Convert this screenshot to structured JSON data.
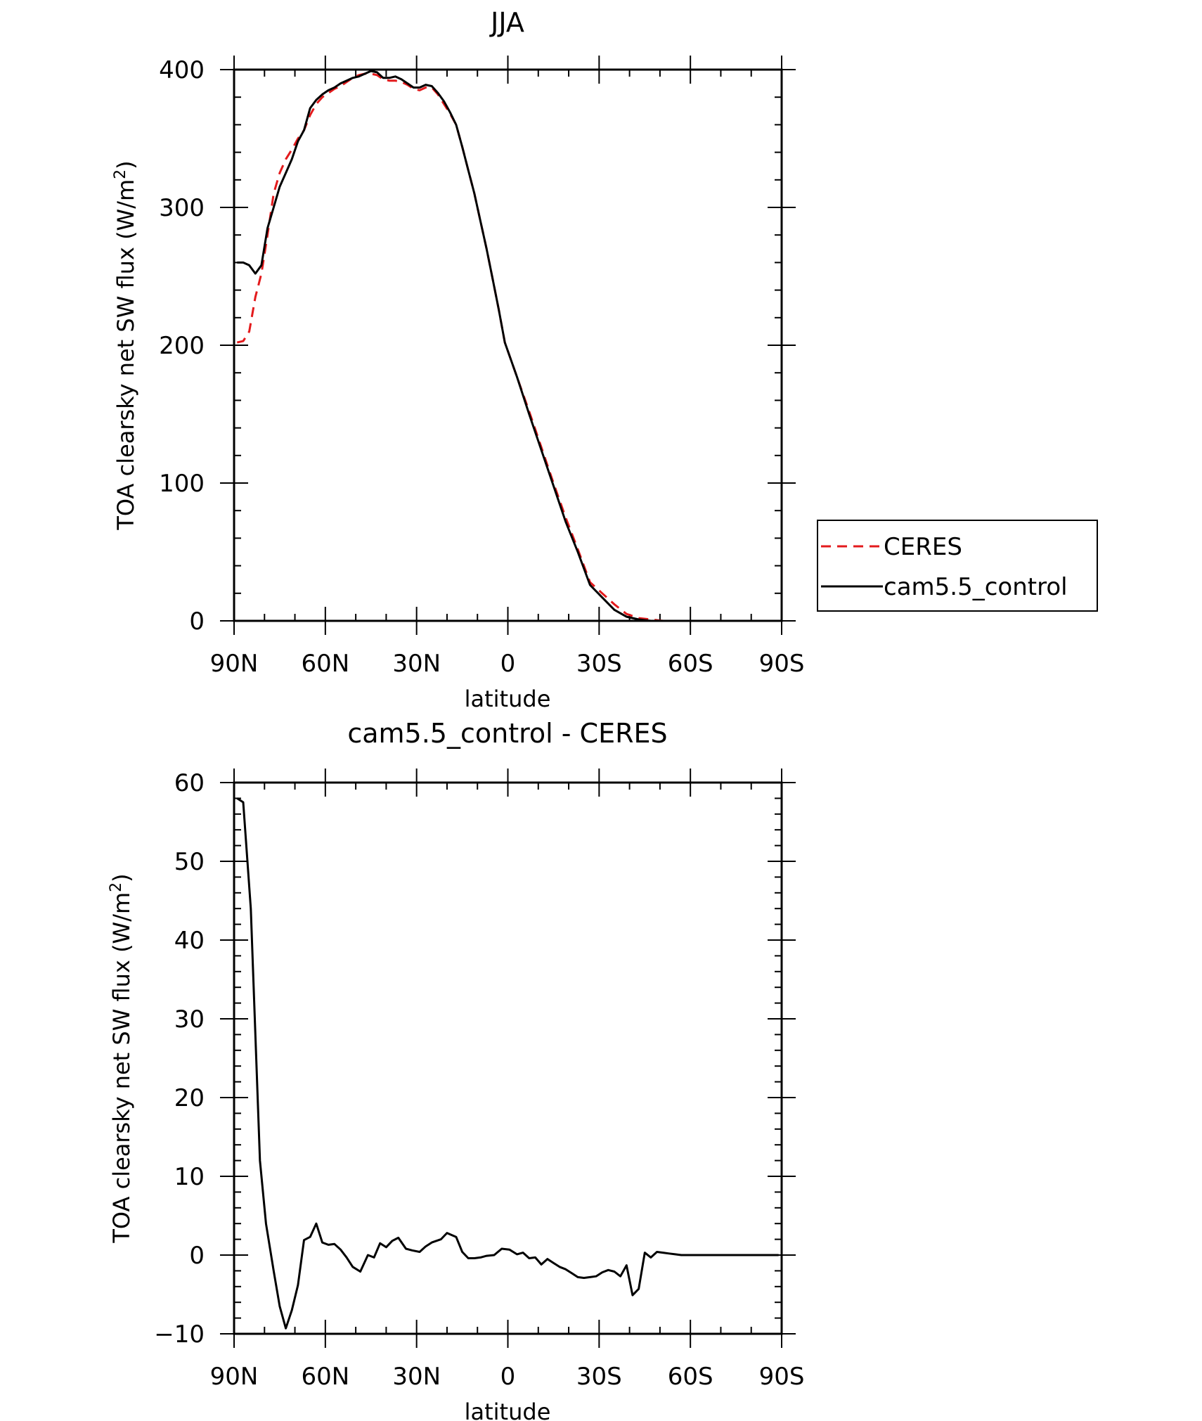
{
  "chart_data": [
    {
      "type": "line",
      "title": "JJA",
      "xlabel": "latitude",
      "ylabel_main": "TOA clearsky net SW flux (W/m",
      "ylabel_sup": "2",
      "ylabel_close": ")",
      "xlim": [
        90,
        -90
      ],
      "ylim": [
        0,
        400
      ],
      "xticks": [
        {
          "value": 90,
          "label": "90N"
        },
        {
          "value": 60,
          "label": "60N"
        },
        {
          "value": 30,
          "label": "30N"
        },
        {
          "value": 0,
          "label": "0"
        },
        {
          "value": -30,
          "label": "30S"
        },
        {
          "value": -60,
          "label": "60S"
        },
        {
          "value": -90,
          "label": "90S"
        }
      ],
      "yticks": [
        0,
        100,
        200,
        300,
        400
      ],
      "legend_position": "right",
      "series": [
        {
          "name": "CERES",
          "color": "#e31a1c",
          "dash": true,
          "x": [
            89,
            87,
            85,
            83,
            81,
            79,
            77,
            75,
            73,
            71,
            69,
            67,
            65,
            63,
            61,
            59,
            57,
            55,
            53,
            51,
            49,
            47,
            45,
            43,
            41,
            39,
            37,
            35,
            33,
            31,
            29,
            27,
            25,
            23,
            21,
            19,
            17,
            15,
            13,
            11,
            9,
            7,
            5,
            3,
            1,
            -3,
            -7,
            -11,
            -15,
            -19,
            -23,
            -27,
            -31,
            -35,
            -39,
            -43,
            -47,
            -51,
            -55,
            -59,
            -61,
            -63,
            -65,
            -67,
            -69,
            -71,
            -73,
            -75,
            -77,
            -79,
            -81,
            -85,
            -89
          ],
          "y": [
            202,
            203,
            210,
            235,
            252,
            280,
            310,
            325,
            335,
            342,
            350,
            356,
            367,
            375,
            380,
            383,
            386,
            388,
            391,
            394,
            396,
            397,
            397,
            396,
            393,
            392,
            392,
            391,
            389,
            386,
            385,
            387,
            387,
            382,
            375,
            368,
            360,
            344,
            327,
            310,
            290,
            270,
            248,
            226,
            202,
            177,
            152,
            126,
            100,
            75,
            52,
            28,
            20,
            12,
            5,
            2,
            1,
            0,
            0,
            0,
            0,
            0,
            0,
            0,
            0,
            0,
            0,
            0,
            0,
            0,
            0,
            0,
            0
          ]
        },
        {
          "name": "cam5.5_control",
          "color": "#000000",
          "dash": false,
          "x": [
            89,
            87,
            85,
            83,
            81,
            79,
            77,
            75,
            73,
            71,
            69,
            67,
            65,
            63,
            61,
            59,
            57,
            55,
            53,
            51,
            49,
            47,
            45,
            43,
            41,
            39,
            37,
            35,
            33,
            31,
            29,
            27,
            25,
            23,
            21,
            19,
            17,
            15,
            13,
            11,
            9,
            7,
            5,
            3,
            1,
            -3,
            -7,
            -11,
            -15,
            -19,
            -23,
            -27,
            -31,
            -35,
            -39,
            -43,
            -47,
            -51,
            -55,
            -59,
            -61,
            -63,
            -65,
            -67,
            -69,
            -71,
            -73,
            -75,
            -77,
            -79,
            -81,
            -85,
            -89
          ],
          "y": [
            260,
            260,
            258,
            252,
            258,
            285,
            300,
            315,
            325,
            335,
            348,
            356,
            372,
            378,
            382,
            385,
            387,
            390,
            392,
            394,
            395,
            397,
            399,
            398,
            394,
            394,
            395,
            393,
            390,
            387,
            387,
            389,
            388,
            383,
            377,
            369,
            360,
            344,
            327,
            310,
            290,
            270,
            248,
            226,
            202,
            177,
            150,
            124,
            98,
            72,
            50,
            26,
            17,
            8,
            3,
            1,
            0,
            0,
            0,
            0,
            0,
            0,
            0,
            0,
            0,
            0,
            0,
            0,
            0,
            0,
            0,
            0,
            0
          ]
        }
      ]
    },
    {
      "type": "line",
      "title": "cam5.5_control - CERES",
      "xlabel": "latitude",
      "ylabel_main": "TOA clearsky net SW flux (W/m",
      "ylabel_sup": "2",
      "ylabel_close": ")",
      "xlim": [
        90,
        -90
      ],
      "ylim": [
        -10,
        60
      ],
      "xticks": [
        {
          "value": 90,
          "label": "90N"
        },
        {
          "value": 60,
          "label": "60N"
        },
        {
          "value": 30,
          "label": "30N"
        },
        {
          "value": 0,
          "label": "0"
        },
        {
          "value": -30,
          "label": "30S"
        },
        {
          "value": -60,
          "label": "60S"
        },
        {
          "value": -90,
          "label": "90S"
        }
      ],
      "yticks": [
        -10,
        0,
        10,
        20,
        30,
        40,
        50,
        60
      ],
      "series": [
        {
          "color": "#000000",
          "dash": false,
          "x": [
            89,
            87,
            84.5,
            81.5,
            79.5,
            77,
            75,
            73,
            71,
            69,
            67,
            65,
            63,
            61,
            59,
            57,
            55,
            53,
            51,
            48.5,
            46,
            44,
            42,
            40,
            38,
            36,
            33.5,
            31.5,
            29,
            27,
            25,
            22,
            20,
            17,
            15,
            13,
            11,
            9,
            7,
            4.5,
            2,
            -0.5,
            -3,
            -5,
            -7,
            -9,
            -11,
            -13,
            -15,
            -17,
            -19,
            -21,
            -23,
            -25,
            -27,
            -29,
            -31,
            -33,
            -35,
            -37,
            -39,
            -41,
            -43,
            -45,
            -47,
            -49,
            -51,
            -53,
            -55,
            -57,
            -59,
            -61,
            -63,
            -65,
            -67,
            -69,
            -71,
            -73,
            -75,
            -77,
            -79,
            -81,
            -83,
            -85,
            -87,
            -89
          ],
          "y": [
            58,
            57.5,
            44,
            12,
            4,
            -2,
            -6.5,
            -9.3,
            -7,
            -3.8,
            1.9,
            2.3,
            4,
            1.6,
            1.3,
            1.4,
            0.7,
            -0.3,
            -1.5,
            -2.1,
            0,
            -0.3,
            1.5,
            1,
            1.8,
            2.2,
            0.8,
            0.6,
            0.4,
            1.1,
            1.6,
            2,
            2.8,
            2.3,
            0.4,
            -0.4,
            -0.4,
            -0.3,
            -0.1,
            0,
            0.8,
            0.7,
            0.1,
            0.3,
            -0.4,
            -0.3,
            -1.2,
            -0.5,
            -1,
            -1.5,
            -1.8,
            -2.3,
            -2.8,
            -2.9,
            -2.8,
            -2.7,
            -2.2,
            -1.9,
            -2.1,
            -2.7,
            -1.3,
            -5.1,
            -4.3,
            0.3,
            -0.3,
            0.4,
            0.3,
            0.2,
            0.1,
            0,
            0,
            0,
            0,
            0,
            0,
            0,
            0,
            0,
            0,
            0,
            0,
            0,
            0,
            0,
            0,
            0
          ]
        }
      ]
    }
  ]
}
